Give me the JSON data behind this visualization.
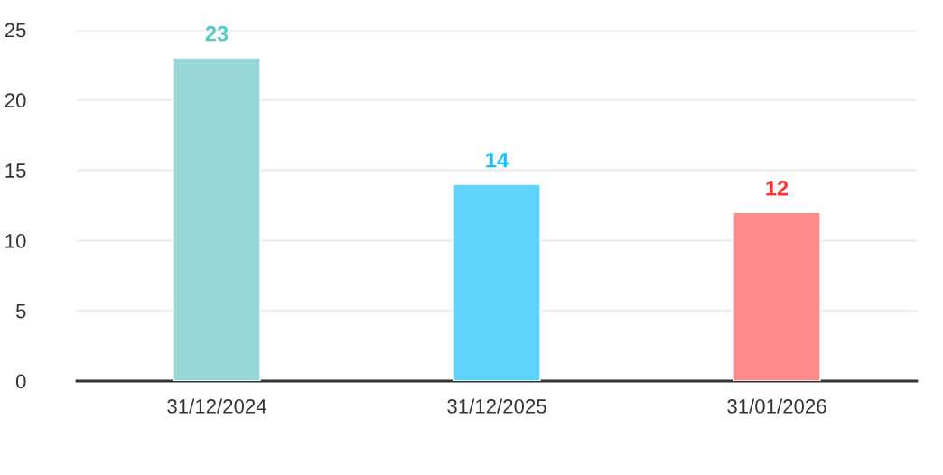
{
  "chart_data": {
    "type": "bar",
    "categories": [
      "31/12/2024",
      "31/12/2025",
      "31/01/2026"
    ],
    "values": [
      23,
      14,
      12
    ],
    "colors": [
      "#98d8d8",
      "#5dd3fe",
      "#fe8a8a"
    ],
    "ylim": [
      0,
      25
    ],
    "yticks": [
      0,
      5,
      10,
      15,
      20,
      25
    ],
    "grid": "y",
    "data_labels": true
  }
}
